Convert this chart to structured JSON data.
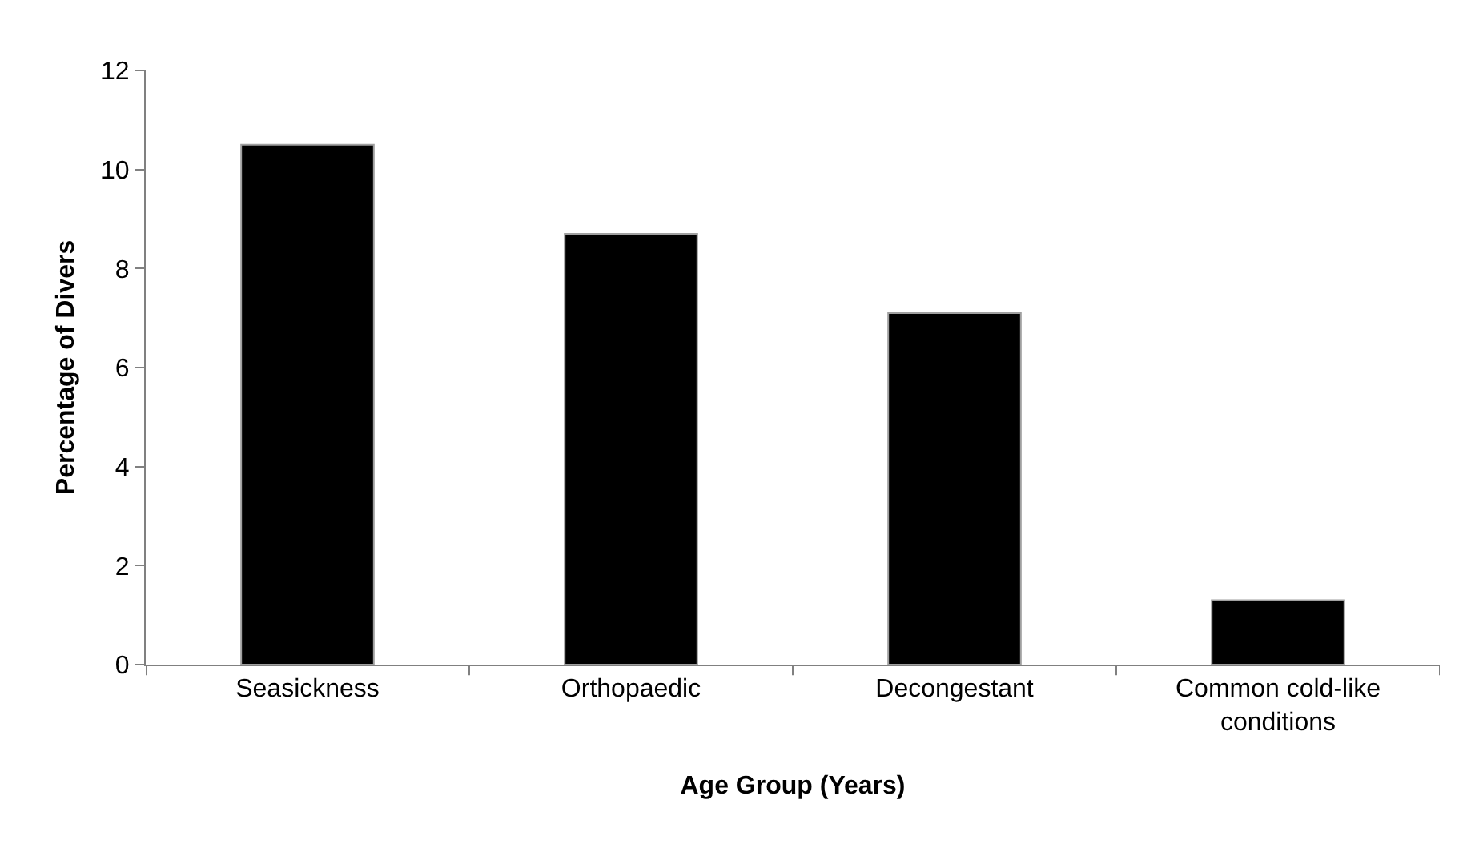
{
  "chart_data": {
    "type": "bar",
    "xlabel": "Age Group (Years)",
    "ylabel": "Percentage of Divers",
    "categories": [
      "Seasickness",
      "Orthopaedic",
      "Decongestant",
      "Common cold-like conditions"
    ],
    "values": [
      10.5,
      8.7,
      7.1,
      1.3
    ],
    "color": "#000000",
    "ylim": [
      0,
      12
    ],
    "yticks": [
      0,
      2,
      4,
      6,
      8,
      10,
      12
    ]
  }
}
